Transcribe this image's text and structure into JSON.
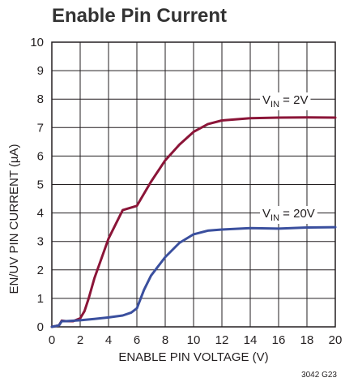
{
  "title": "Enable Pin Current",
  "footnote": "3042 G23",
  "chart_data": {
    "type": "line",
    "xlabel": "ENABLE PIN VOLTAGE (V)",
    "ylabel": "EN/UV PIN CURRENT (µA)",
    "xlim": [
      0,
      20
    ],
    "ylim": [
      0,
      10
    ],
    "xticks": [
      "0",
      "2",
      "4",
      "6",
      "8",
      "10",
      "12",
      "14",
      "16",
      "18",
      "20"
    ],
    "yticks": [
      "0",
      "1",
      "2",
      "3",
      "4",
      "5",
      "6",
      "7",
      "8",
      "9",
      "10"
    ],
    "grid": true,
    "colors": {
      "vin2": "#8b1538",
      "vin20": "#3a4f9e",
      "grid": "#231f20"
    },
    "series": [
      {
        "name": "VIN = 2V",
        "label_main": "V",
        "label_sub": "IN",
        "label_rest": " = 2V",
        "points": [
          [
            0,
            0
          ],
          [
            0.5,
            0.05
          ],
          [
            0.7,
            0.22
          ],
          [
            1.0,
            0.2
          ],
          [
            1.5,
            0.2
          ],
          [
            2.0,
            0.3
          ],
          [
            2.3,
            0.55
          ],
          [
            2.6,
            1.0
          ],
          [
            3.0,
            1.7
          ],
          [
            4.0,
            3.1
          ],
          [
            5.0,
            4.1
          ],
          [
            6.0,
            4.25
          ],
          [
            7.0,
            5.1
          ],
          [
            8.0,
            5.85
          ],
          [
            9.0,
            6.4
          ],
          [
            10.0,
            6.85
          ],
          [
            11.0,
            7.12
          ],
          [
            12.0,
            7.25
          ],
          [
            14.0,
            7.33
          ],
          [
            16.0,
            7.35
          ],
          [
            18.0,
            7.36
          ],
          [
            20.0,
            7.35
          ]
        ]
      },
      {
        "name": "VIN = 20V",
        "label_main": "V",
        "label_sub": "IN",
        "label_rest": " = 20V",
        "points": [
          [
            0,
            0
          ],
          [
            0.5,
            0.05
          ],
          [
            0.7,
            0.2
          ],
          [
            1.0,
            0.2
          ],
          [
            2.0,
            0.23
          ],
          [
            3.0,
            0.28
          ],
          [
            4.0,
            0.33
          ],
          [
            5.0,
            0.4
          ],
          [
            5.6,
            0.5
          ],
          [
            6.0,
            0.65
          ],
          [
            6.5,
            1.3
          ],
          [
            7.0,
            1.8
          ],
          [
            8.0,
            2.45
          ],
          [
            9.0,
            2.95
          ],
          [
            10.0,
            3.25
          ],
          [
            11.0,
            3.38
          ],
          [
            12.0,
            3.42
          ],
          [
            14.0,
            3.47
          ],
          [
            16.0,
            3.45
          ],
          [
            18.0,
            3.49
          ],
          [
            20.0,
            3.5
          ]
        ]
      }
    ]
  }
}
